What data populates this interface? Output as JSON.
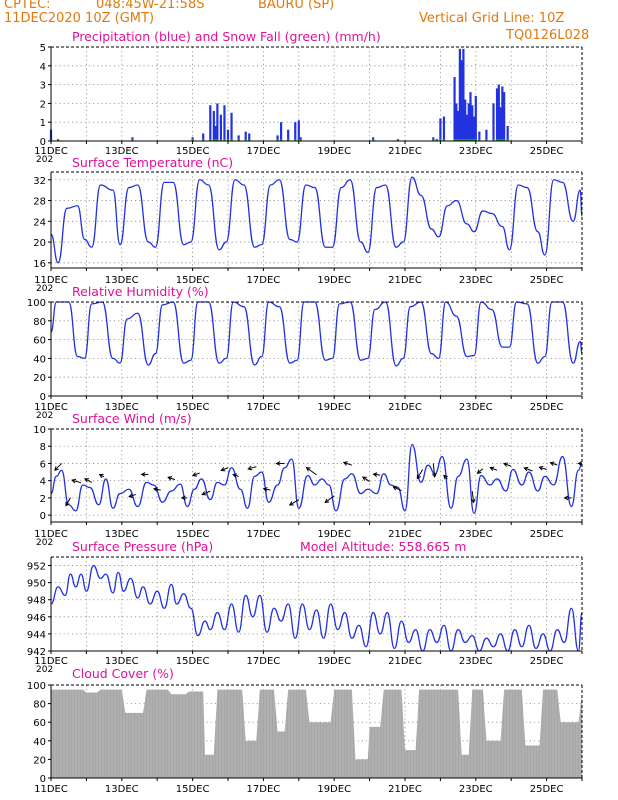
{
  "header": {
    "source": "CPTEC:",
    "coords": "048:45W-21:58S",
    "station": "BAURU (SP)",
    "datetime": "11DEC2020 10Z (GMT)",
    "grid_note": "Vertical Grid Line: 10Z",
    "run_code": "TQ0126L028"
  },
  "colors": {
    "header": "#e07a10",
    "title": "#e0109a",
    "series": "#2232e0",
    "snow": "#18a018",
    "cloud": "#a6a6a6",
    "grid": "#8a8a8a",
    "arrow": "#000000"
  },
  "x_axis": {
    "start_day": 11,
    "end_day": 26,
    "tick_labels": [
      "11DEC",
      "13DEC",
      "15DEC",
      "17DEC",
      "19DEC",
      "21DEC",
      "23DEC",
      "25DEC"
    ],
    "clipped_label": "202"
  },
  "chart_data": [
    {
      "id": "precip",
      "type": "bar",
      "title": "Precipitation (blue) and Snow Fall (green) (mm/h)",
      "ylim": [
        0,
        5
      ],
      "yticks": [
        0,
        1,
        2,
        3,
        4,
        5
      ],
      "grid": true,
      "x": [
        11.0,
        11.2,
        13.3,
        15.0,
        15.3,
        15.5,
        15.6,
        15.65,
        15.7,
        15.8,
        15.9,
        16.0,
        16.1,
        16.3,
        16.5,
        16.6,
        17.4,
        17.5,
        17.7,
        17.9,
        18.0,
        18.05,
        20.1,
        20.8,
        21.8,
        21.9,
        22.0,
        22.1,
        22.4,
        22.45,
        22.5,
        22.55,
        22.6,
        22.65,
        22.7,
        22.75,
        22.8,
        22.85,
        22.9,
        22.95,
        23.0,
        23.1,
        23.3,
        23.5,
        23.6,
        23.65,
        23.7,
        23.75,
        23.8,
        23.9
      ],
      "series": [
        {
          "name": "Precipitation",
          "values": [
            0.6,
            0.1,
            0.2,
            0.2,
            0.4,
            1.9,
            1.6,
            0.8,
            2.0,
            1.4,
            1.9,
            0.6,
            1.5,
            0.3,
            0.5,
            0.4,
            0.3,
            1.0,
            0.6,
            1.0,
            1.1,
            0.2,
            0.2,
            0.1,
            0.2,
            0.1,
            1.2,
            1.3,
            3.4,
            2.0,
            1.6,
            4.9,
            4.3,
            4.9,
            2.2,
            1.4,
            2.0,
            2.6,
            1.9,
            1.3,
            2.4,
            0.5,
            0.6,
            2.0,
            2.8,
            3.0,
            1.8,
            2.9,
            2.6,
            0.8
          ]
        },
        {
          "name": "Snow Fall",
          "values": [
            0.1,
            0.1,
            0.1,
            0.1,
            0.1,
            0.1,
            0.1,
            0.1,
            0.1,
            0.1,
            0.1,
            0.1,
            0.1,
            0.1,
            0.1,
            0.1,
            0.1,
            0.1,
            0.1,
            0.1,
            0.1,
            0.1,
            0.1,
            0.1,
            0.1,
            0.1,
            0.1,
            0.1,
            0.1,
            0.1,
            0.1,
            0.1,
            0.1,
            0.1,
            0.1,
            0.1,
            0.1,
            0.1,
            0.1,
            0.1,
            0.1,
            0.1,
            0.1,
            0.1,
            0.1,
            0.1,
            0.1,
            0.1,
            0.1,
            0.1
          ]
        }
      ]
    },
    {
      "id": "temperature",
      "type": "line",
      "title": "Surface Temperature (nC)",
      "ylim": [
        15,
        33.5
      ],
      "yticks": [
        16,
        20,
        24,
        28,
        32
      ],
      "grid": true,
      "x": [
        11.0,
        11.2,
        11.45,
        11.75,
        11.95,
        12.15,
        12.4,
        12.75,
        12.95,
        13.2,
        13.45,
        13.75,
        13.95,
        14.2,
        14.45,
        14.75,
        14.95,
        15.2,
        15.45,
        15.75,
        15.95,
        16.2,
        16.45,
        16.75,
        16.95,
        17.2,
        17.45,
        17.75,
        17.95,
        18.2,
        18.45,
        18.75,
        18.95,
        19.2,
        19.45,
        19.75,
        19.95,
        20.2,
        20.45,
        20.75,
        20.95,
        21.2,
        21.45,
        21.75,
        21.95,
        22.2,
        22.45,
        22.75,
        22.95,
        23.2,
        23.45,
        23.75,
        23.95,
        24.2,
        24.45,
        24.75,
        24.95,
        25.2,
        25.45,
        25.75,
        25.95,
        26.0
      ],
      "series": [
        {
          "name": "",
          "values": [
            21.5,
            16.0,
            26.5,
            27.0,
            20.5,
            19.0,
            31.0,
            30.0,
            19.5,
            30.5,
            31.0,
            20.0,
            19.0,
            31.5,
            31.5,
            19.5,
            20.0,
            32.0,
            31.0,
            18.5,
            20.0,
            32.0,
            31.0,
            19.0,
            19.5,
            31.0,
            32.0,
            20.5,
            20.0,
            31.0,
            30.5,
            19.0,
            19.0,
            30.5,
            32.0,
            20.0,
            18.0,
            30.5,
            31.0,
            19.0,
            20.0,
            32.5,
            29.0,
            22.5,
            21.0,
            27.0,
            28.0,
            23.5,
            22.0,
            26.0,
            25.5,
            23.0,
            18.5,
            31.0,
            30.5,
            22.0,
            17.5,
            32.0,
            31.5,
            24.0,
            30.0,
            25.0
          ]
        }
      ]
    },
    {
      "id": "humidity",
      "type": "line",
      "title": "Relative Humidity (%)",
      "ylim": [
        0,
        100
      ],
      "yticks": [
        0,
        20,
        40,
        60,
        80,
        100
      ],
      "grid": true,
      "x": [
        11.0,
        11.15,
        11.5,
        11.75,
        11.95,
        12.15,
        12.45,
        12.75,
        12.95,
        13.15,
        13.45,
        13.75,
        13.95,
        14.15,
        14.45,
        14.75,
        14.95,
        15.15,
        15.45,
        15.75,
        15.95,
        16.15,
        16.45,
        16.75,
        16.95,
        17.15,
        17.45,
        17.75,
        17.95,
        18.15,
        18.45,
        18.75,
        18.95,
        19.15,
        19.45,
        19.75,
        19.95,
        20.15,
        20.45,
        20.75,
        20.95,
        21.15,
        21.45,
        21.75,
        21.95,
        22.15,
        22.45,
        22.75,
        22.95,
        23.15,
        23.45,
        23.75,
        23.95,
        24.15,
        24.45,
        24.75,
        24.95,
        25.15,
        25.45,
        25.75,
        25.95,
        26.0
      ],
      "series": [
        {
          "name": "",
          "values": [
            68,
            100,
            100,
            42,
            40,
            98,
            100,
            40,
            35,
            82,
            88,
            33,
            45,
            97,
            100,
            35,
            38,
            100,
            100,
            35,
            40,
            100,
            95,
            33,
            42,
            100,
            95,
            35,
            38,
            100,
            100,
            38,
            40,
            98,
            100,
            38,
            40,
            92,
            100,
            32,
            40,
            95,
            100,
            45,
            40,
            100,
            85,
            42,
            43,
            100,
            92,
            52,
            52,
            100,
            98,
            35,
            42,
            100,
            100,
            35,
            58,
            45
          ]
        }
      ]
    },
    {
      "id": "wind",
      "type": "line",
      "title": "Surface Wind (m/s)",
      "ylim": [
        -0.8,
        10
      ],
      "yticks": [
        0,
        2,
        4,
        6,
        8,
        10
      ],
      "grid": true,
      "x": [
        11.0,
        11.15,
        11.3,
        11.5,
        11.7,
        11.9,
        12.1,
        12.35,
        12.55,
        12.75,
        12.95,
        13.2,
        13.45,
        13.7,
        13.9,
        14.15,
        14.4,
        14.65,
        14.85,
        15.05,
        15.25,
        15.5,
        15.7,
        15.9,
        16.1,
        16.35,
        16.55,
        16.75,
        16.95,
        17.15,
        17.4,
        17.6,
        17.8,
        18.0,
        18.25,
        18.45,
        18.65,
        18.85,
        19.05,
        19.3,
        19.5,
        19.75,
        19.95,
        20.2,
        20.4,
        20.6,
        20.8,
        21.0,
        21.2,
        21.45,
        21.65,
        21.85,
        22.05,
        22.3,
        22.5,
        22.75,
        22.95,
        23.15,
        23.4,
        23.6,
        23.85,
        24.05,
        24.3,
        24.5,
        24.75,
        24.95,
        25.2,
        25.45,
        25.7,
        25.9,
        26.0
      ],
      "series": [
        {
          "name": "",
          "values": [
            2.5,
            4.5,
            5.2,
            1.2,
            0.5,
            3.5,
            3.2,
            1.2,
            4.2,
            0.8,
            2.5,
            3.0,
            1.0,
            3.8,
            3.5,
            1.5,
            2.8,
            3.6,
            1.0,
            3.0,
            4.2,
            1.8,
            3.8,
            3.5,
            5.5,
            3.0,
            0.8,
            4.5,
            5.0,
            1.5,
            3.5,
            5.5,
            6.5,
            0.8,
            4.6,
            3.5,
            4.2,
            3.5,
            0.5,
            4.2,
            4.8,
            2.5,
            3.0,
            2.5,
            4.8,
            3.5,
            3.2,
            0.5,
            8.2,
            3.8,
            5.8,
            4.8,
            6.8,
            0.8,
            4.5,
            6.5,
            0.2,
            4.6,
            3.5,
            4.2,
            2.8,
            5.3,
            3.5,
            5.0,
            2.8,
            4.5,
            3.5,
            6.8,
            1.0,
            5.2,
            6.0
          ]
        }
      ],
      "arrows": {
        "x": [
          11.3,
          11.55,
          11.85,
          12.15,
          12.5,
          13.4,
          13.75,
          14.1,
          14.5,
          14.85,
          15.2,
          15.5,
          16.0,
          16.3,
          16.8,
          17.2,
          17.6,
          18.0,
          18.5,
          19.0,
          19.5,
          20.0,
          20.3,
          20.9,
          21.5,
          21.8,
          22.2,
          22.9,
          23.2,
          23.6,
          24.0,
          24.6,
          25.0,
          25.3,
          25.7,
          26.0
        ],
        "u_ms": [
          -1.5,
          -1.0,
          -2.0,
          -1.5,
          -1.0,
          -1.5,
          -1.5,
          -1.5,
          -1.5,
          -1.2,
          -1.5,
          -1.8,
          -1.5,
          -1.2,
          -1.8,
          -1.5,
          -1.8,
          -2.0,
          -2.2,
          -2.0,
          -1.8,
          -1.5,
          -1.5,
          -1.8,
          -1.2,
          0.3,
          -0.8,
          0.3,
          -1.2,
          -1.5,
          -1.6,
          -1.8,
          -1.6,
          -1.5,
          -1.5,
          -0.8
        ],
        "v_ms": [
          -1.5,
          -1.8,
          0.6,
          0.8,
          0.5,
          -0.5,
          0.0,
          0.3,
          0.5,
          0.0,
          -0.6,
          -0.8,
          -0.6,
          0.4,
          -0.5,
          0.3,
          0.0,
          -1.2,
          1.6,
          -1.5,
          0.6,
          1.0,
          0.2,
          0.8,
          -2.0,
          -3.0,
          0.8,
          -2.5,
          -1.0,
          0.6,
          0.6,
          0.7,
          0.5,
          0.5,
          0.0,
          0.0
        ]
      }
    },
    {
      "id": "pressure",
      "type": "line",
      "title": "Surface Pressure (hPa)",
      "annotation": "Model Altitude: 558.665 m",
      "ylim": [
        942,
        953
      ],
      "yticks": [
        942,
        944,
        946,
        948,
        950,
        952
      ],
      "grid": true,
      "x": [
        11.0,
        11.2,
        11.4,
        11.55,
        11.7,
        11.85,
        12.0,
        12.2,
        12.4,
        12.55,
        12.75,
        12.9,
        13.05,
        13.25,
        13.45,
        13.6,
        13.8,
        14.0,
        14.2,
        14.4,
        14.55,
        14.75,
        14.95,
        15.15,
        15.35,
        15.5,
        15.7,
        15.9,
        16.1,
        16.3,
        16.5,
        16.7,
        16.9,
        17.1,
        17.3,
        17.5,
        17.7,
        17.9,
        18.1,
        18.3,
        18.5,
        18.7,
        18.9,
        19.1,
        19.3,
        19.5,
        19.7,
        19.9,
        20.1,
        20.3,
        20.5,
        20.7,
        20.9,
        21.1,
        21.3,
        21.5,
        21.7,
        21.9,
        22.1,
        22.3,
        22.5,
        22.7,
        22.9,
        23.1,
        23.3,
        23.5,
        23.7,
        23.9,
        24.1,
        24.3,
        24.5,
        24.7,
        24.9,
        25.1,
        25.3,
        25.5,
        25.7,
        25.9,
        26.0
      ],
      "series": [
        {
          "name": "",
          "values": [
            947.5,
            949.5,
            948.5,
            951.0,
            949.5,
            951.0,
            949.0,
            952.0,
            950.5,
            951.0,
            948.8,
            951.2,
            949.0,
            950.5,
            948.2,
            949.5,
            947.5,
            949.0,
            947.0,
            949.8,
            947.5,
            948.7,
            947.0,
            943.8,
            945.5,
            944.5,
            946.5,
            944.5,
            947.5,
            944.2,
            948.5,
            946.0,
            948.5,
            944.2,
            947.0,
            945.5,
            947.5,
            943.5,
            947.5,
            944.5,
            946.8,
            943.5,
            947.5,
            944.5,
            946.5,
            943.5,
            945.0,
            942.5,
            946.5,
            944.0,
            946.5,
            942.3,
            945.5,
            943.0,
            944.5,
            942.0,
            944.5,
            943.0,
            945.0,
            942.0,
            944.5,
            943.0,
            943.8,
            942.0,
            943.5,
            942.5,
            944.0,
            942.0,
            944.5,
            942.5,
            945.0,
            942.3,
            944.0,
            942.0,
            944.5,
            943.0,
            947.0,
            942.0,
            946.5
          ]
        }
      ]
    },
    {
      "id": "cloud",
      "type": "area",
      "title": "Cloud Cover (%)",
      "ylim": [
        0,
        100
      ],
      "yticks": [
        0,
        20,
        40,
        60,
        80,
        100
      ],
      "grid": true,
      "x": [
        11.0,
        11.9,
        12.0,
        12.3,
        12.4,
        13.0,
        13.1,
        13.6,
        13.7,
        14.3,
        14.4,
        14.8,
        14.9,
        15.3,
        15.35,
        15.6,
        15.7,
        16.4,
        16.5,
        16.8,
        16.9,
        17.3,
        17.4,
        17.6,
        17.7,
        18.2,
        18.3,
        18.9,
        19.0,
        19.5,
        19.6,
        19.95,
        20.0,
        20.3,
        20.4,
        20.9,
        21.0,
        21.3,
        21.4,
        22.5,
        22.6,
        22.8,
        22.9,
        23.2,
        23.3,
        23.7,
        23.8,
        24.3,
        24.4,
        24.8,
        24.9,
        25.3,
        25.4,
        25.9,
        26.0
      ],
      "series": [
        {
          "name": "",
          "values": [
            95,
            95,
            92,
            92,
            95,
            95,
            70,
            70,
            95,
            95,
            90,
            90,
            93,
            93,
            25,
            25,
            95,
            95,
            40,
            40,
            95,
            95,
            50,
            50,
            95,
            95,
            60,
            60,
            95,
            95,
            20,
            20,
            55,
            55,
            95,
            95,
            30,
            30,
            95,
            95,
            25,
            25,
            95,
            95,
            40,
            40,
            95,
            95,
            35,
            35,
            95,
            95,
            60,
            60,
            90
          ]
        }
      ]
    }
  ]
}
